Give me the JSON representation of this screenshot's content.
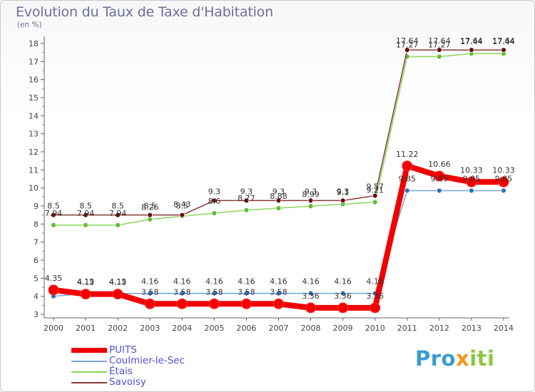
{
  "title": "Evolution du Taux de Taxe d'Habitation",
  "unit_label": "(en %)",
  "brand": {
    "part1": "Pro",
    "part2": "x",
    "part3": "iti"
  },
  "colors": {
    "PUITS": "#f00000",
    "Coulmier-le-Sec": "#7aa6d6",
    "Etais": "#8cd65a",
    "Savoisy": "#8b3a3a"
  },
  "chart_data": {
    "type": "line",
    "title": "Evolution du Taux de Taxe d'Habitation",
    "ylabel": "(en %)",
    "xlabel": "",
    "x": [
      "2000",
      "2001",
      "2002",
      "2003",
      "2004",
      "2005",
      "2006",
      "2007",
      "2008",
      "2009",
      "2010",
      "2011",
      "2012",
      "2013",
      "2014"
    ],
    "ylim": [
      3,
      18
    ],
    "yticks": [
      "3",
      "4",
      "5",
      "6",
      "7",
      "8",
      "9",
      "10",
      "11",
      "12",
      "13",
      "14",
      "15",
      "16",
      "17",
      "18"
    ],
    "grid": false,
    "legend": "bottom-left",
    "series": [
      {
        "name": "PUITS",
        "values": [
          4.35,
          4.12,
          4.12,
          3.58,
          3.58,
          3.58,
          3.58,
          3.58,
          3.36,
          3.36,
          3.36,
          11.22,
          10.66,
          10.33,
          10.33
        ],
        "labels": [
          "4.35",
          "4.12",
          "4.12",
          "3.58",
          "3.58",
          "3.58",
          "3.58",
          "3.58",
          "3.36",
          "3.36",
          "3.36",
          "11.22",
          "10.66",
          "10.33",
          "10.33"
        ]
      },
      {
        "name": "Coulmier-le-Sec",
        "values": [
          4.0,
          4.15,
          4.15,
          4.16,
          4.16,
          4.16,
          4.16,
          4.16,
          4.16,
          4.16,
          4.16,
          9.85,
          9.85,
          9.85,
          9.85
        ],
        "labels": [
          "",
          "4.15",
          "4.15",
          "4.16",
          "4.16",
          "4.16",
          "4.16",
          "4.16",
          "4.16",
          "4.16",
          "4.16",
          "9.85",
          "9.85",
          "9.85",
          "9.85"
        ]
      },
      {
        "name": "Étais",
        "values": [
          7.94,
          7.94,
          7.94,
          8.26,
          8.43,
          8.6,
          8.77,
          8.88,
          8.99,
          9.1,
          9.21,
          17.27,
          17.27,
          17.44,
          17.44
        ],
        "labels": [
          "7.94",
          "7.94",
          "7.94",
          "8.26",
          "8.43",
          "8.6",
          "8.77",
          "8.88",
          "8.99",
          "9.1",
          "9.21",
          "17.27",
          "17.27",
          "17.44",
          "17.44"
        ]
      },
      {
        "name": "Savoisy",
        "values": [
          8.5,
          8.5,
          8.5,
          8.5,
          8.5,
          9.3,
          9.3,
          9.3,
          9.3,
          9.3,
          9.57,
          17.64,
          17.64,
          17.64,
          17.64
        ],
        "labels": [
          "8.5",
          "8.5",
          "8.5",
          "8.5",
          "8.5",
          "9.3",
          "9.3",
          "9.3",
          "9.3",
          "9.3",
          "9.57",
          "17.64",
          "17.64",
          "17.64",
          "17.64"
        ]
      }
    ]
  }
}
